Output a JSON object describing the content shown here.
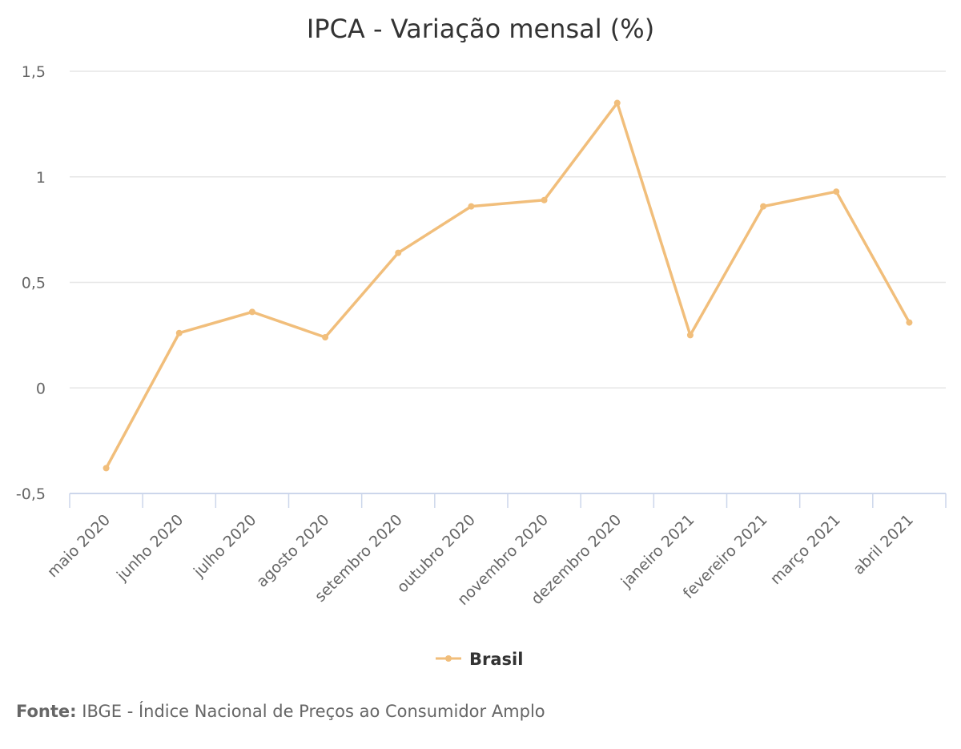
{
  "colors": {
    "series": "#F1BE7B",
    "grid": "#E6E6E6",
    "axis": "#CCD6EB",
    "text": "#333333",
    "tick_text": "#666666"
  },
  "chart_data": {
    "type": "line",
    "title": "IPCA - Variação mensal (%)",
    "xlabel": "",
    "ylabel": "",
    "categories": [
      "maio 2020",
      "junho 2020",
      "julho 2020",
      "agosto 2020",
      "setembro 2020",
      "outubro 2020",
      "novembro 2020",
      "dezembro 2020",
      "janeiro 2021",
      "fevereiro 2021",
      "março 2021",
      "abril 2021"
    ],
    "series": [
      {
        "name": "Brasil",
        "values": [
          -0.38,
          0.26,
          0.36,
          0.24,
          0.64,
          0.86,
          0.89,
          1.35,
          0.25,
          0.86,
          0.93,
          0.31
        ]
      }
    ],
    "ylim": [
      -0.5,
      1.5
    ],
    "yticks": [
      -0.5,
      0,
      0.5,
      1,
      1.5
    ],
    "ytick_labels": [
      "-0,5",
      "0",
      "0,5",
      "1",
      "1,5"
    ],
    "grid": true,
    "legend_position": "bottom-center"
  },
  "source": {
    "label": "Fonte:",
    "text": "IBGE - Índice Nacional de Preços ao Consumidor Amplo"
  }
}
